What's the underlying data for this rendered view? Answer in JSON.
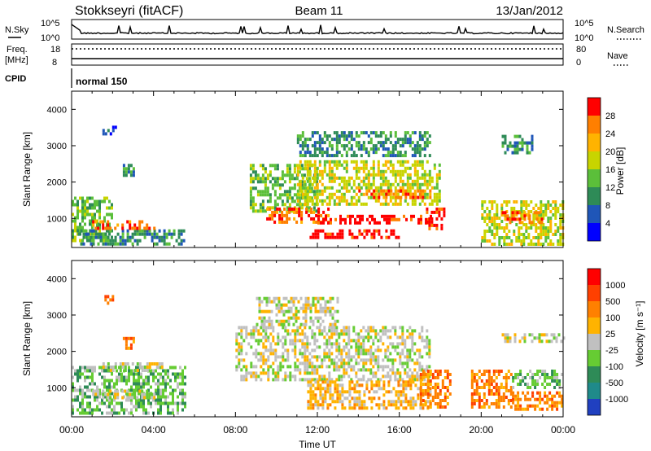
{
  "header": {
    "station": "Stokkseyri (fitACF)",
    "beam": "Beam 11",
    "date": "13/Jan/2012"
  },
  "sky_panel": {
    "left_label": "N.Sky",
    "left_ticks": [
      "10^5",
      "10^0"
    ],
    "right_ticks": [
      "10^5",
      "10^0"
    ],
    "right_label": "N.Search"
  },
  "freq_panel": {
    "left_label_1": "Freq.",
    "left_label_2": "[MHz]",
    "left_ticks": [
      "18",
      "8"
    ],
    "right_ticks": [
      "80",
      "0"
    ],
    "right_label": "Nave"
  },
  "cpid_panel": {
    "left_label": "CPID",
    "mode": "normal 150"
  },
  "x_axis": {
    "label": "Time UT",
    "ticks": [
      "00:00",
      "04:00",
      "08:00",
      "12:00",
      "16:00",
      "20:00",
      "00:00"
    ]
  },
  "power_colorbar": {
    "label": "Power [dB]",
    "ticks": [
      "28",
      "24",
      "20",
      "16",
      "12",
      "8",
      "4"
    ],
    "colors": [
      "#0000ff",
      "#1f56b8",
      "#2e8b57",
      "#5bbf3a",
      "#c8d400",
      "#ffb300",
      "#ff7f00",
      "#ff0000"
    ]
  },
  "velocity_colorbar": {
    "label": "Velocity [m s⁻¹]",
    "ticks": [
      "1000",
      "500",
      "100",
      "25",
      "-25",
      "-100",
      "-500",
      "-1000"
    ],
    "colors": [
      "#2040c0",
      "#1f8a8a",
      "#2e8b57",
      "#66cc33",
      "#c0c0c0",
      "#ffb300",
      "#ff8000",
      "#ff4000",
      "#ff0000"
    ]
  },
  "chart_data": [
    {
      "type": "heatmap",
      "title": "Power",
      "ylabel": "Slant Range [km]",
      "xlabel": "",
      "yticks": [
        "1000",
        "2000",
        "3000",
        "4000"
      ],
      "ylim": [
        200,
        4500
      ],
      "xlim_hours": [
        0,
        24
      ],
      "patches": [
        {
          "t0": 0.0,
          "t1": 2.0,
          "r0": 400,
          "r1": 1600,
          "level": 3
        },
        {
          "t0": 0.3,
          "t1": 5.5,
          "r0": 300,
          "r1": 700,
          "level": 2
        },
        {
          "t0": 1.0,
          "t1": 4.0,
          "r0": 750,
          "r1": 950,
          "level": 6
        },
        {
          "t0": 1.5,
          "t1": 2.2,
          "r0": 3300,
          "r1": 3550,
          "level": 1
        },
        {
          "t0": 2.5,
          "t1": 3.0,
          "r0": 2200,
          "r1": 2500,
          "level": 2
        },
        {
          "t0": 8.7,
          "t1": 12.0,
          "r0": 1200,
          "r1": 2500,
          "level": 3
        },
        {
          "t0": 9.5,
          "t1": 12.5,
          "r0": 900,
          "r1": 1300,
          "level": 6
        },
        {
          "t0": 11.5,
          "t1": 16.0,
          "r0": 450,
          "r1": 700,
          "level": 7
        },
        {
          "t0": 12.0,
          "t1": 17.5,
          "r0": 850,
          "r1": 1100,
          "level": 7
        },
        {
          "t0": 11.0,
          "t1": 18.0,
          "r0": 1400,
          "r1": 2600,
          "level": 4
        },
        {
          "t0": 14.0,
          "t1": 17.5,
          "r0": 1600,
          "r1": 1800,
          "level": 6
        },
        {
          "t0": 11.0,
          "t1": 17.5,
          "r0": 2700,
          "r1": 3400,
          "level": 2
        },
        {
          "t0": 17.3,
          "t1": 18.2,
          "r0": 700,
          "r1": 1300,
          "level": 7
        },
        {
          "t0": 20.0,
          "t1": 24.0,
          "r0": 300,
          "r1": 1500,
          "level": 4
        },
        {
          "t0": 21.0,
          "t1": 23.0,
          "r0": 900,
          "r1": 1200,
          "level": 6
        },
        {
          "t0": 21.0,
          "t1": 22.5,
          "r0": 2800,
          "r1": 3300,
          "level": 2
        }
      ]
    },
    {
      "type": "heatmap",
      "title": "Velocity",
      "ylabel": "Slant Range [km]",
      "xlabel": "Time UT",
      "yticks": [
        "1000",
        "2000",
        "3000",
        "4000"
      ],
      "ylim": [
        200,
        4500
      ],
      "xlim_hours": [
        0,
        24
      ],
      "patches": [
        {
          "t0": 0.0,
          "t1": 5.5,
          "r0": 300,
          "r1": 1600,
          "level": 3
        },
        {
          "t0": 1.0,
          "t1": 4.0,
          "r0": 750,
          "r1": 950,
          "level": 4
        },
        {
          "t0": 1.5,
          "t1": 4.5,
          "r0": 1500,
          "r1": 1700,
          "level": 4
        },
        {
          "t0": 2.5,
          "t1": 3.0,
          "r0": 2100,
          "r1": 2400,
          "level": 6
        },
        {
          "t0": 1.6,
          "t1": 2.0,
          "r0": 3300,
          "r1": 3550,
          "level": 6
        },
        {
          "t0": 8.0,
          "t1": 17.5,
          "r0": 1200,
          "r1": 2700,
          "level": 4
        },
        {
          "t0": 9.0,
          "t1": 13.0,
          "r0": 2700,
          "r1": 3500,
          "level": 4
        },
        {
          "t0": 11.5,
          "t1": 17.5,
          "r0": 400,
          "r1": 1200,
          "level": 5
        },
        {
          "t0": 17.0,
          "t1": 18.5,
          "r0": 500,
          "r1": 1500,
          "level": 6
        },
        {
          "t0": 19.5,
          "t1": 21.5,
          "r0": 500,
          "r1": 1500,
          "level": 6
        },
        {
          "t0": 21.5,
          "t1": 24.0,
          "r0": 400,
          "r1": 900,
          "level": 6
        },
        {
          "t0": 21.5,
          "t1": 24.0,
          "r0": 1000,
          "r1": 1500,
          "level": 3
        },
        {
          "t0": 21.0,
          "t1": 24.0,
          "r0": 2300,
          "r1": 2500,
          "level": 4
        }
      ]
    }
  ]
}
